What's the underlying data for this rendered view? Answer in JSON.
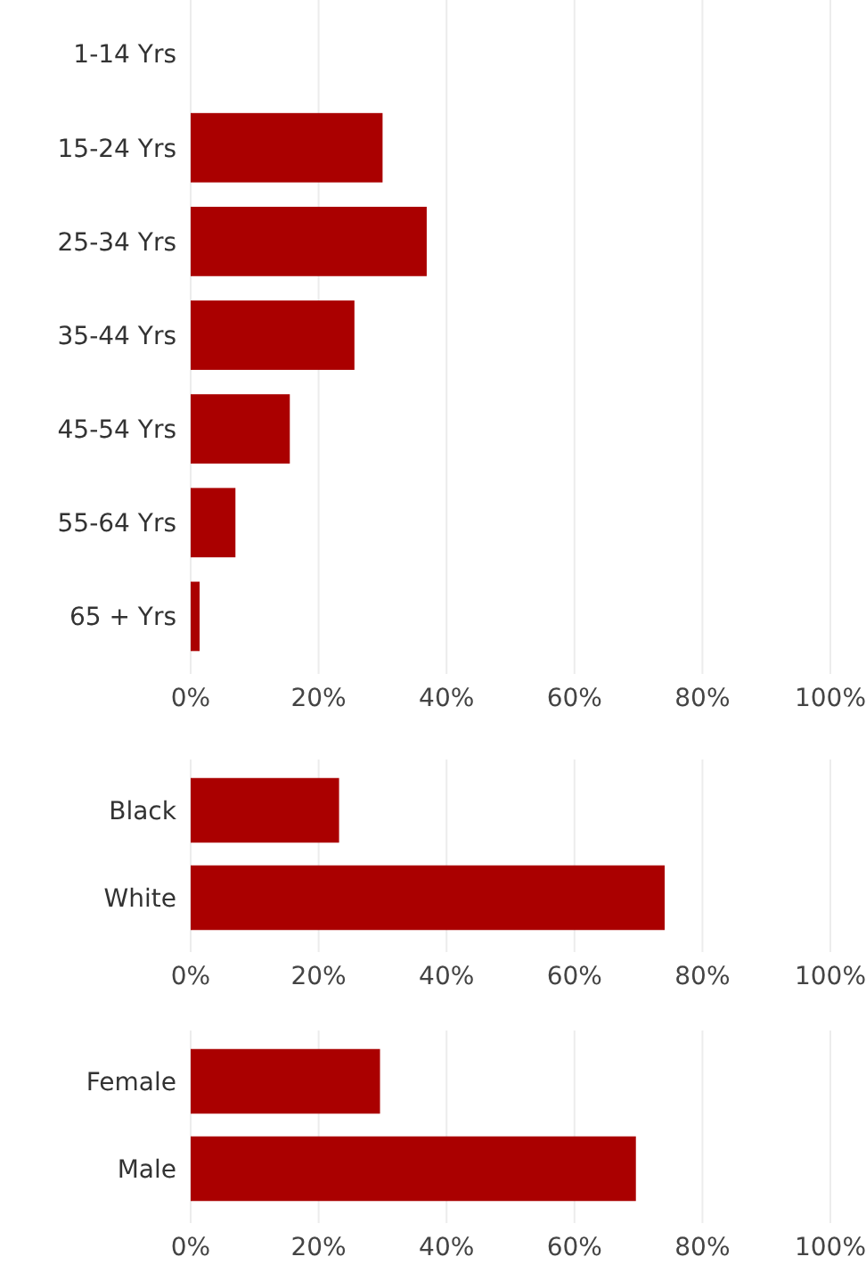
{
  "chart_data": [
    {
      "type": "bar",
      "orientation": "horizontal",
      "categories": [
        "1-14 Yrs",
        "15-24 Yrs",
        "25-34 Yrs",
        "35-44 Yrs",
        "45-54 Yrs",
        "55-64 Yrs",
        "65 + Yrs"
      ],
      "values": [
        0,
        30,
        36.9,
        25.6,
        15.5,
        7,
        1.4
      ],
      "color": "#aa0000",
      "xlim": [
        0,
        100
      ],
      "xticks": [
        {
          "value": 0,
          "label": "0%"
        },
        {
          "value": 20,
          "label": "20%"
        },
        {
          "value": 40,
          "label": "40%"
        },
        {
          "value": 60,
          "label": "60%"
        },
        {
          "value": 80,
          "label": "80%"
        },
        {
          "value": 100,
          "label": "100%"
        }
      ],
      "grid": "x"
    },
    {
      "type": "bar",
      "orientation": "horizontal",
      "categories": [
        "Black",
        "White"
      ],
      "values": [
        23.2,
        74.1
      ],
      "color": "#aa0000",
      "xlim": [
        0,
        100
      ],
      "xticks": [
        {
          "value": 0,
          "label": "0%"
        },
        {
          "value": 20,
          "label": "20%"
        },
        {
          "value": 40,
          "label": "40%"
        },
        {
          "value": 60,
          "label": "60%"
        },
        {
          "value": 80,
          "label": "80%"
        },
        {
          "value": 100,
          "label": "100%"
        }
      ],
      "grid": "x"
    },
    {
      "type": "bar",
      "orientation": "horizontal",
      "categories": [
        "Female",
        "Male"
      ],
      "values": [
        29.6,
        69.6
      ],
      "color": "#aa0000",
      "xlim": [
        0,
        100
      ],
      "xticks": [
        {
          "value": 0,
          "label": "0%"
        },
        {
          "value": 20,
          "label": "20%"
        },
        {
          "value": 40,
          "label": "40%"
        },
        {
          "value": 60,
          "label": "60%"
        },
        {
          "value": 80,
          "label": "80%"
        },
        {
          "value": 100,
          "label": "100%"
        }
      ],
      "grid": "x"
    }
  ]
}
